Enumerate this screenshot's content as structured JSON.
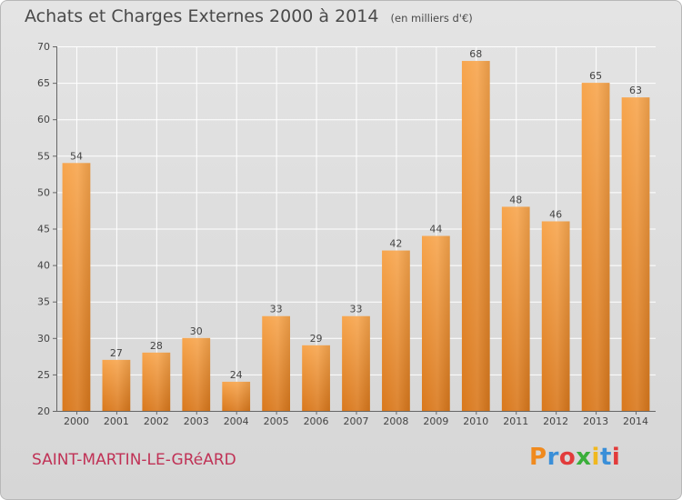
{
  "header": {
    "title": "Achats et Charges Externes 2000 à 2014",
    "unit": "(en milliers d'€)"
  },
  "footer": {
    "place": "SAINT-MARTIN-LE-GRéARD",
    "logo": "Proxiti"
  },
  "colors": {
    "bar_light": "#f7a54d",
    "bar_dark": "#d9781c",
    "place_text": "#c03256",
    "logo_letters": [
      "#f08a1e",
      "#3a8fd8",
      "#e23b3b",
      "#3aae3a",
      "#f0b81e",
      "#3a8fd8",
      "#e23b3b"
    ]
  },
  "chart_data": {
    "type": "bar",
    "title": "Achats et Charges Externes 2000 à 2014",
    "subtitle": "(en milliers d'€)",
    "categories": [
      "2000",
      "2001",
      "2002",
      "2003",
      "2004",
      "2005",
      "2006",
      "2007",
      "2008",
      "2009",
      "2010",
      "2011",
      "2012",
      "2013",
      "2014"
    ],
    "values": [
      54,
      27,
      28,
      30,
      24,
      33,
      29,
      33,
      42,
      44,
      68,
      48,
      46,
      65,
      63
    ],
    "ylim": [
      20,
      70
    ],
    "yticks": [
      20,
      25,
      30,
      35,
      40,
      45,
      50,
      55,
      60,
      65,
      70
    ],
    "grid": true,
    "data_labels": true
  }
}
